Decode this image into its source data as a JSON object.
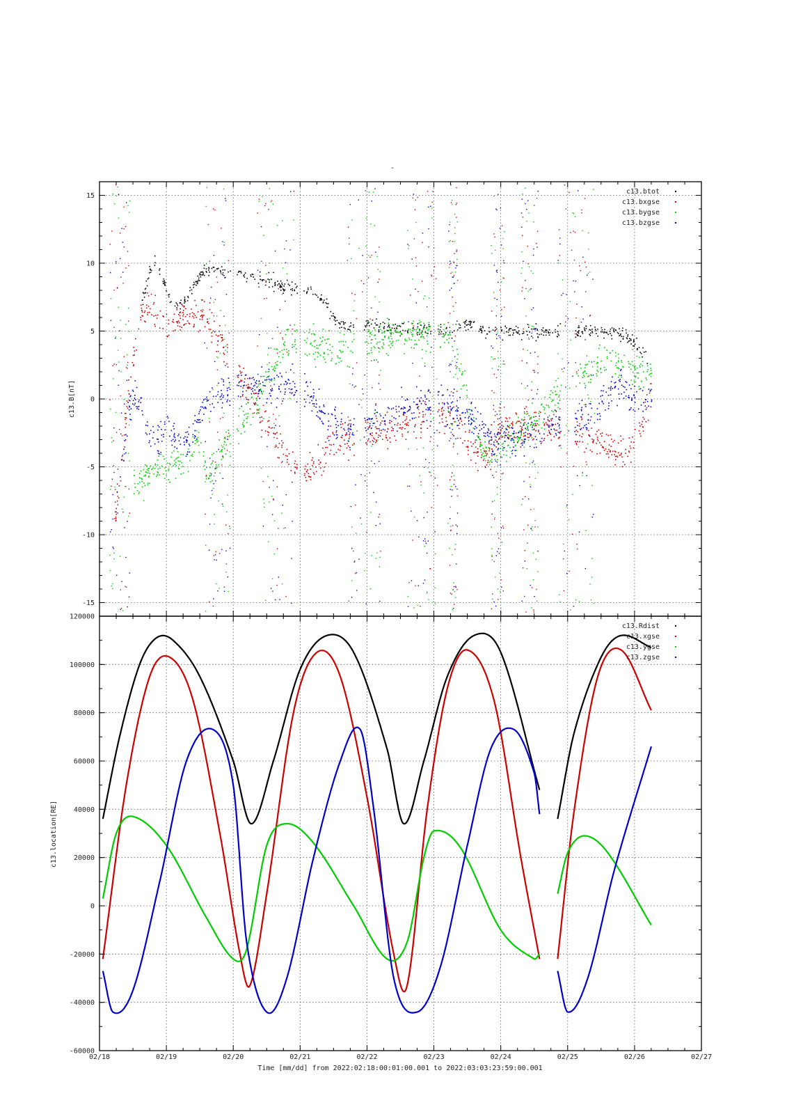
{
  "chart_data": [
    {
      "type": "scatter",
      "title": "-",
      "ylabel": "c13.B[nT]",
      "ylim": [
        -16,
        16
      ],
      "yticks": [
        -15,
        -10,
        -5,
        0,
        5,
        10,
        15
      ],
      "xlim": [
        "02/18",
        "02/27"
      ],
      "grid": true,
      "legend_position": "top-right",
      "data_gaps_days": [
        [
          1.95,
          2.05
        ],
        [
          2.95,
          3.05
        ],
        [
          3.8,
          3.95
        ],
        [
          4.95,
          5.05
        ],
        [
          6.9,
          7.1
        ]
      ],
      "series": [
        {
          "name": "c13.btot",
          "color": "#000000",
          "x": [
            0.62,
            0.8,
            1.0,
            1.2,
            1.5,
            1.7,
            3.0,
            3.3,
            3.6,
            3.85,
            5.2,
            5.5,
            5.8,
            5.95,
            7.6,
            7.9,
            8.2
          ],
          "y": [
            7,
            10,
            8,
            7,
            9,
            9.5,
            8,
            7.5,
            5.5,
            5.5,
            5,
            5.5,
            5,
            5,
            5,
            4.5,
            3
          ]
        },
        {
          "name": "c13.bxgse",
          "color": "#cc0000",
          "x": [
            0.2,
            0.5,
            0.65,
            0.8,
            1.0,
            1.3,
            1.6,
            2.9,
            3.2,
            3.5,
            3.8,
            5.2,
            5.5,
            5.8,
            6.0,
            7.5,
            7.8,
            8.1,
            8.25
          ],
          "y": [
            -10,
            3,
            6.5,
            6.5,
            5.5,
            6,
            6,
            -5,
            -5,
            -3,
            -3,
            -1,
            -3,
            -4,
            -2,
            -3,
            -4,
            -2,
            1
          ]
        },
        {
          "name": "c13.bygse",
          "color": "#00cc00",
          "x": [
            0.5,
            0.8,
            1.0,
            1.3,
            1.5,
            1.6,
            2.9,
            3.2,
            3.5,
            3.8,
            5.2,
            5.5,
            5.7,
            6.0,
            7.5,
            7.8,
            8.25
          ],
          "y": [
            -6,
            -5.5,
            -5,
            -4.5,
            -3,
            -5.5,
            4.5,
            4,
            3.5,
            4,
            4.5,
            0,
            -3.5,
            -3.5,
            3,
            2.5,
            2
          ]
        },
        {
          "name": "c13.bzgse",
          "color": "#0000cc",
          "x": [
            0.3,
            0.5,
            0.7,
            0.9,
            1.0,
            1.2,
            1.4,
            1.6,
            2.9,
            3.2,
            3.5,
            3.8,
            5.1,
            5.4,
            5.7,
            5.9,
            7.4,
            7.7,
            8.0,
            8.25
          ],
          "y": [
            -5,
            0,
            -2,
            -3,
            -2,
            -3,
            -2.5,
            0,
            1,
            0,
            -2,
            -2,
            0,
            -1,
            -2,
            -3,
            -1,
            1,
            0,
            0
          ]
        }
      ]
    },
    {
      "type": "line",
      "ylabel": "c13.location[RE]",
      "xlabel": "Time [mm/dd]  from 2022:02:18:00:01:00.001  to  2022:03:03:23:59:00.001",
      "ylim": [
        -60000,
        120000
      ],
      "yticks": [
        -60000,
        -40000,
        -20000,
        0,
        20000,
        40000,
        60000,
        80000,
        100000,
        120000
      ],
      "xticks": [
        "02/18",
        "02/19",
        "02/20",
        "02/21",
        "02/22",
        "02/23",
        "02/24",
        "02/25",
        "02/26",
        "02/27"
      ],
      "xlim": [
        "02/18",
        "02/27"
      ],
      "grid": true,
      "legend_position": "top-right",
      "orbit_period_days": 2.55,
      "data_gap_days": [
        6.6,
        6.85
      ],
      "series": [
        {
          "name": "c13.Rdist",
          "color": "#000000",
          "x": [
            0.05,
            0.3,
            0.6,
            0.85,
            1.1,
            1.5,
            2.0,
            2.27,
            2.6,
            3.0,
            3.4,
            3.8,
            4.3,
            4.55,
            4.85,
            5.2,
            5.6,
            6.0,
            6.58,
            6.85,
            7.1,
            7.5,
            7.8,
            8.25
          ],
          "y": [
            36000,
            70000,
            100000,
            111000,
            110000,
            95000,
            60000,
            34000,
            60000,
            98000,
            112000,
            105000,
            65000,
            34000,
            60000,
            95000,
            112000,
            105000,
            48000,
            36000,
            72000,
            103000,
            112000,
            107000
          ]
        },
        {
          "name": "c13.xgse",
          "color": "#cc0000",
          "x": [
            0.05,
            0.4,
            0.75,
            1.05,
            1.4,
            1.8,
            2.1,
            2.25,
            2.5,
            2.9,
            3.25,
            3.6,
            4.0,
            4.4,
            4.6,
            4.9,
            5.2,
            5.5,
            5.9,
            6.3,
            6.58,
            6.85,
            7.1,
            7.45,
            7.8,
            8.25
          ],
          "y": [
            -22000,
            50000,
            95000,
            103000,
            85000,
            30000,
            -20000,
            -33000,
            5000,
            80000,
            105000,
            95000,
            45000,
            -20000,
            -33000,
            40000,
            90000,
            106000,
            85000,
            20000,
            -22000,
            -22000,
            40000,
            95000,
            106000,
            81000
          ]
        },
        {
          "name": "c13.ygse",
          "color": "#00cc00",
          "x": [
            0.05,
            0.25,
            0.5,
            1.0,
            1.6,
            2.0,
            2.2,
            2.5,
            2.8,
            3.2,
            3.8,
            4.3,
            4.6,
            4.85,
            5.0,
            5.4,
            6.0,
            6.5,
            6.58,
            6.85,
            7.0,
            7.25,
            7.6,
            8.25
          ],
          "y": [
            3000,
            30000,
            37000,
            25000,
            -5000,
            -22000,
            -18000,
            25000,
            34000,
            26000,
            0,
            -22000,
            -15000,
            20000,
            31000,
            24000,
            -10000,
            -22000,
            -20000,
            5000,
            22000,
            29000,
            22000,
            -8000
          ]
        },
        {
          "name": "c13.zgse",
          "color": "#0000cc",
          "x": [
            0.05,
            0.2,
            0.5,
            0.9,
            1.3,
            1.7,
            2.0,
            2.2,
            2.5,
            2.8,
            3.2,
            3.6,
            3.9,
            4.1,
            4.4,
            4.75,
            5.1,
            5.5,
            5.85,
            6.2,
            6.5,
            6.58,
            6.85,
            7.0,
            7.3,
            7.7,
            8.25
          ],
          "y": [
            -27000,
            -44000,
            -35000,
            10000,
            60000,
            73000,
            50000,
            -15000,
            -44000,
            -30000,
            20000,
            60000,
            73000,
            40000,
            -30000,
            -44000,
            -25000,
            25000,
            65000,
            73000,
            55000,
            38000,
            -27000,
            -44000,
            -30000,
            15000,
            66000
          ]
        }
      ]
    }
  ]
}
